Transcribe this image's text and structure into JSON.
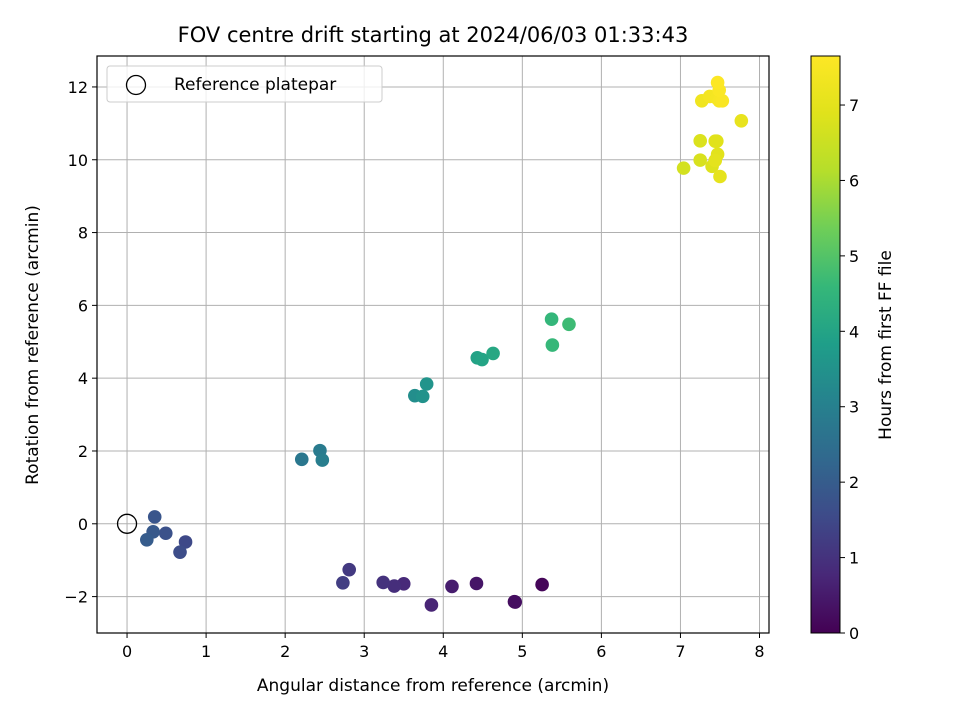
{
  "chart_data": {
    "type": "scatter",
    "title": "FOV centre drift starting at 2024/06/03 01:33:43",
    "xlabel": "Angular distance from reference (arcmin)",
    "ylabel": "Rotation from reference (arcmin)",
    "xlim": [
      -0.38,
      8.12
    ],
    "ylim": [
      -3.0,
      12.85
    ],
    "xticks": [
      "0",
      "1",
      "2",
      "3",
      "4",
      "5",
      "6",
      "7",
      "8"
    ],
    "yticks": [
      "−2",
      "0",
      "2",
      "4",
      "6",
      "8",
      "10",
      "12"
    ],
    "grid": true,
    "legend": {
      "placement": "top-left",
      "entries": [
        "Reference platepar"
      ]
    },
    "reference_point": {
      "x": 0,
      "y": 0
    },
    "colorbar": {
      "label": "Hours from first FF file",
      "range": [
        0,
        7.65
      ],
      "ticks": [
        "0",
        "1",
        "2",
        "3",
        "4",
        "5",
        "6",
        "7"
      ],
      "colormap": "viridis"
    },
    "series": [
      {
        "points": [
          {
            "x": 5.25,
            "y": -1.67,
            "c": 0.1
          },
          {
            "x": 4.9,
            "y": -2.14,
            "c": 0.2
          },
          {
            "x": 4.91,
            "y": -2.15,
            "c": 0.25
          },
          {
            "x": 4.42,
            "y": -1.64,
            "c": 0.4
          },
          {
            "x": 4.11,
            "y": -1.72,
            "c": 0.55
          },
          {
            "x": 3.85,
            "y": -2.23,
            "c": 0.7
          },
          {
            "x": 3.5,
            "y": -1.65,
            "c": 0.8
          },
          {
            "x": 3.38,
            "y": -1.71,
            "c": 0.9
          },
          {
            "x": 3.24,
            "y": -1.61,
            "c": 1.0
          },
          {
            "x": 2.81,
            "y": -1.26,
            "c": 1.15
          },
          {
            "x": 2.73,
            "y": -1.62,
            "c": 1.25
          },
          {
            "x": 0.74,
            "y": -0.5,
            "c": 1.5
          },
          {
            "x": 0.67,
            "y": -0.78,
            "c": 1.6
          },
          {
            "x": 0.49,
            "y": -0.26,
            "c": 1.7
          },
          {
            "x": 0.35,
            "y": 0.19,
            "c": 1.8
          },
          {
            "x": 0.33,
            "y": -0.22,
            "c": 1.9
          },
          {
            "x": 0.25,
            "y": -0.44,
            "c": 2.0
          },
          {
            "x": 2.21,
            "y": 1.77,
            "c": 2.75
          },
          {
            "x": 2.44,
            "y": 2.01,
            "c": 2.85
          },
          {
            "x": 2.47,
            "y": 1.75,
            "c": 2.95
          },
          {
            "x": 3.64,
            "y": 3.52,
            "c": 3.4
          },
          {
            "x": 3.74,
            "y": 3.5,
            "c": 3.5
          },
          {
            "x": 3.79,
            "y": 3.84,
            "c": 3.55
          },
          {
            "x": 4.43,
            "y": 4.56,
            "c": 3.95
          },
          {
            "x": 4.49,
            "y": 4.51,
            "c": 4.0
          },
          {
            "x": 4.63,
            "y": 4.68,
            "c": 4.1
          },
          {
            "x": 5.37,
            "y": 5.62,
            "c": 4.55
          },
          {
            "x": 5.38,
            "y": 4.91,
            "c": 4.6
          },
          {
            "x": 5.59,
            "y": 5.48,
            "c": 4.7
          },
          {
            "x": 7.04,
            "y": 9.77,
            "c": 6.65
          },
          {
            "x": 7.25,
            "y": 9.99,
            "c": 6.75
          },
          {
            "x": 7.25,
            "y": 10.52,
            "c": 6.8
          },
          {
            "x": 7.4,
            "y": 9.82,
            "c": 6.85
          },
          {
            "x": 7.44,
            "y": 10.51,
            "c": 6.9
          },
          {
            "x": 7.46,
            "y": 10.51,
            "c": 6.92
          },
          {
            "x": 7.47,
            "y": 10.15,
            "c": 6.95
          },
          {
            "x": 7.44,
            "y": 9.98,
            "c": 7.0
          },
          {
            "x": 7.5,
            "y": 9.54,
            "c": 7.05
          },
          {
            "x": 7.77,
            "y": 11.07,
            "c": 7.1
          },
          {
            "x": 7.27,
            "y": 11.62,
            "c": 7.3
          },
          {
            "x": 7.37,
            "y": 11.74,
            "c": 7.4
          },
          {
            "x": 7.46,
            "y": 11.69,
            "c": 7.45
          },
          {
            "x": 7.49,
            "y": 11.62,
            "c": 7.5
          },
          {
            "x": 7.53,
            "y": 11.62,
            "c": 7.55
          },
          {
            "x": 7.49,
            "y": 11.91,
            "c": 7.58
          },
          {
            "x": 7.47,
            "y": 12.12,
            "c": 7.62
          }
        ]
      }
    ]
  }
}
